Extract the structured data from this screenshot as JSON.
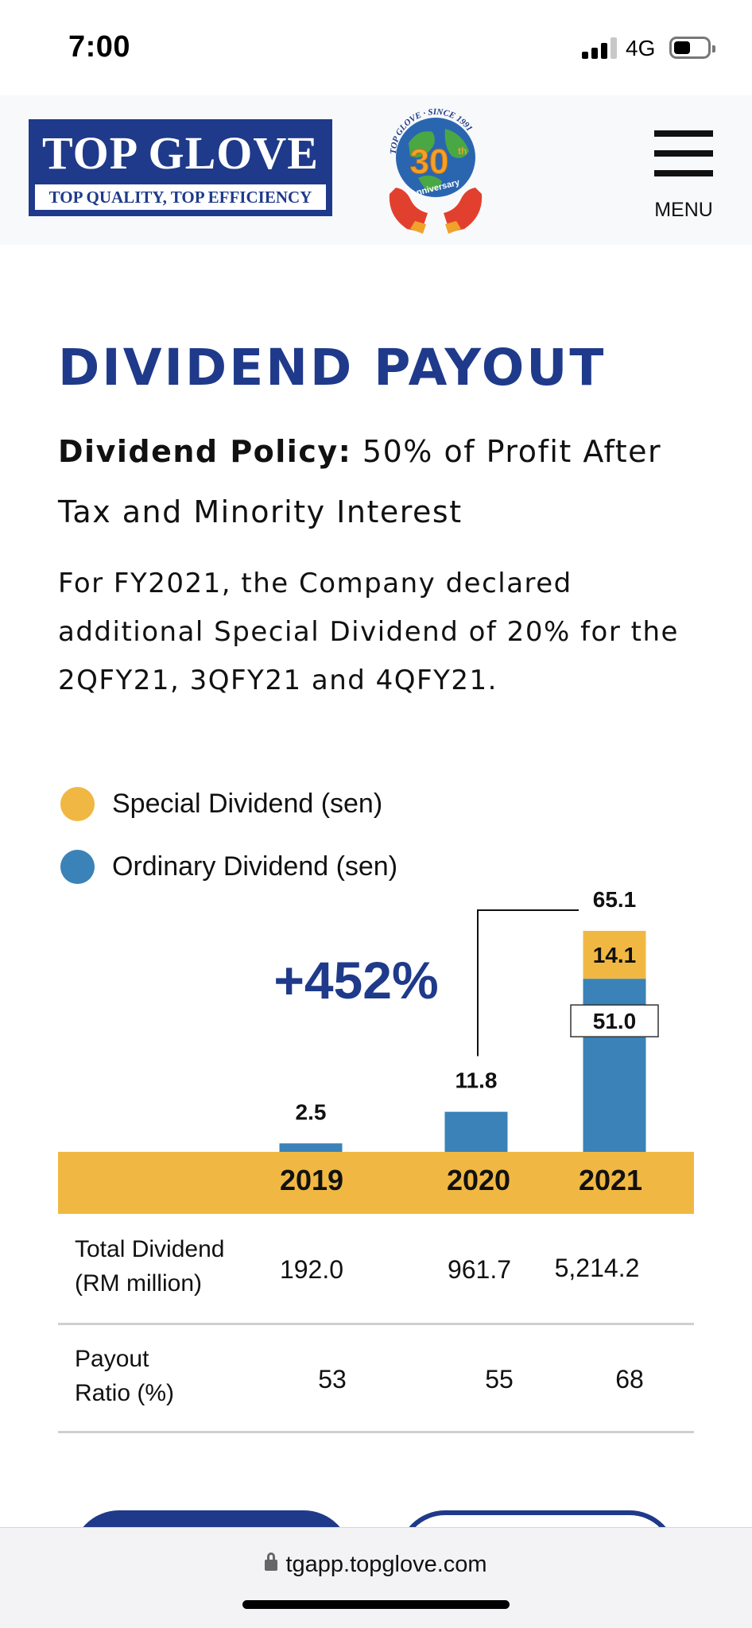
{
  "status_bar": {
    "time": "7:00",
    "network": "4G"
  },
  "header": {
    "logo_name": "TOP GLOVE",
    "logo_tagline": "TOP QUALITY, TOP EFFICIENCY",
    "anniversary": {
      "arc_text": "TOP GLOVE · SINCE 1991",
      "number": "30",
      "suffix": "th",
      "label": "Anniversary"
    },
    "menu_label": "MENU"
  },
  "content": {
    "title": "DIVIDEND PAYOUT",
    "policy_bold": "Dividend Policy:",
    "policy_text": " 50% of Profit After Tax and Minority Interest",
    "description": "For FY2021, the Company declared additional Special Dividend of 20% for the 2QFY21, 3QFY21 and 4QFY21."
  },
  "legend": [
    {
      "label": "Special Dividend (sen)",
      "color": "#f0b843"
    },
    {
      "label": "Ordinary Dividend (sen)",
      "color": "#3a82b8"
    }
  ],
  "chart_data": {
    "type": "bar",
    "stacked": true,
    "categories": [
      "2019",
      "2020",
      "2021"
    ],
    "series": [
      {
        "name": "Ordinary Dividend (sen)",
        "values": [
          2.5,
          11.8,
          51.0
        ],
        "color": "#3a82b8"
      },
      {
        "name": "Special Dividend (sen)",
        "values": [
          0,
          0,
          14.1
        ],
        "color": "#f0b843"
      }
    ],
    "totals": [
      2.5,
      11.8,
      65.1
    ],
    "total_labels": [
      "2.5",
      "11.8",
      "65.1"
    ],
    "segment_labels": {
      "ordinary_2021": "51.0",
      "special_2021": "14.1"
    },
    "annotation": "+452%",
    "ylim": [
      0,
      65.1
    ]
  },
  "table": {
    "rows": [
      {
        "label_lines": [
          "Total Dividend",
          "(RM million)"
        ],
        "values": [
          "192.0",
          "961.7",
          "5,214.2"
        ]
      },
      {
        "label_lines": [
          "Payout",
          "Ratio (%)"
        ],
        "values": [
          "53",
          "55",
          "68"
        ]
      }
    ]
  },
  "browser": {
    "url": "tgapp.topglove.com"
  },
  "colors": {
    "brand_navy": "#1f3a8a",
    "gold": "#f0b843",
    "blue": "#3a82b8"
  }
}
